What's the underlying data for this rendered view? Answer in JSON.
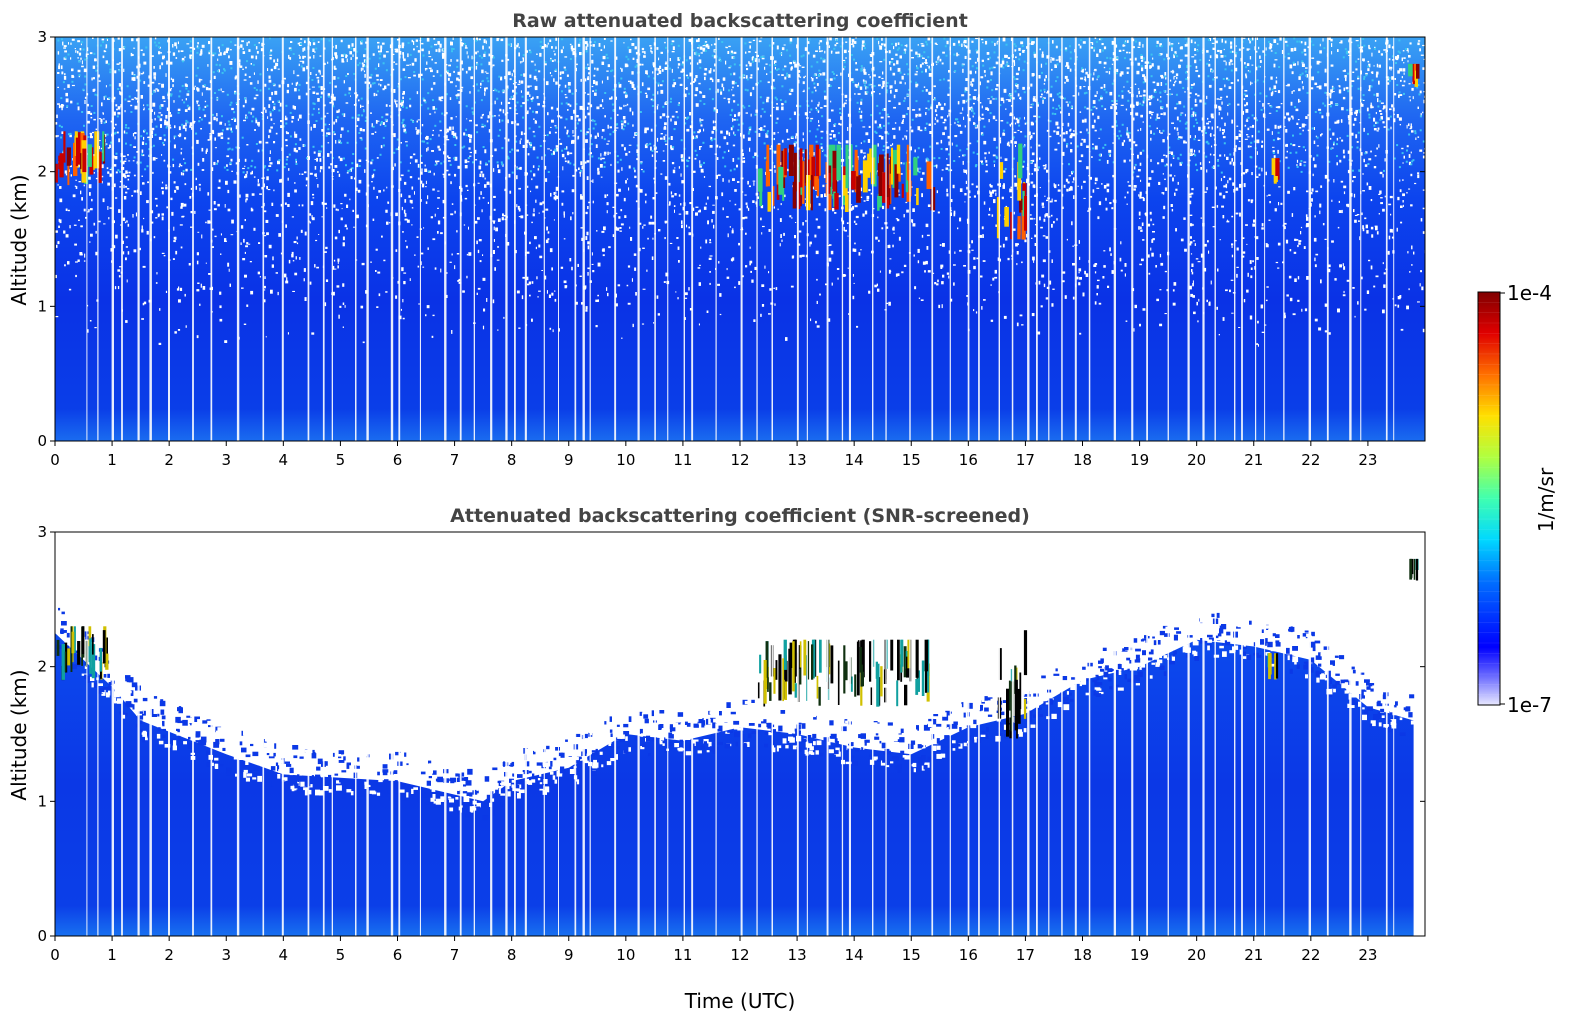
{
  "chart_data": [
    {
      "type": "heatmap",
      "title": "Raw attenuated backscattering coefficient",
      "xlabel": "",
      "ylabel": "Altitude (km)",
      "xlim": [
        0,
        24
      ],
      "ylim": [
        0,
        3
      ],
      "x_ticks": [
        "0",
        "1",
        "2",
        "3",
        "4",
        "5",
        "6",
        "7",
        "8",
        "9",
        "10",
        "11",
        "12",
        "13",
        "14",
        "15",
        "16",
        "17",
        "18",
        "19",
        "20",
        "21",
        "22",
        "23"
      ],
      "y_ticks": [
        "0",
        "1",
        "2",
        "3"
      ],
      "grid": false,
      "features": [
        {
          "kind": "cloud",
          "x_range": [
            0,
            0.9
          ],
          "alt_range": [
            1.9,
            2.3
          ]
        },
        {
          "kind": "cloud",
          "x_range": [
            12.3,
            15.4
          ],
          "alt_range": [
            1.7,
            2.2
          ]
        },
        {
          "kind": "cloud",
          "x_range": [
            16.5,
            17.0
          ],
          "alt_range": [
            1.45,
            2.3
          ]
        },
        {
          "kind": "cloud",
          "x_range": [
            21.2,
            21.4
          ],
          "alt_range": [
            1.9,
            2.1
          ]
        },
        {
          "kind": "cloud",
          "x_range": [
            23.7,
            23.85
          ],
          "alt_range": [
            2.6,
            2.8
          ]
        }
      ]
    },
    {
      "type": "heatmap",
      "title": "Attenuated backscattering coefficient (SNR-screened)",
      "xlabel": "Time (UTC)",
      "ylabel": "Altitude (km)",
      "xlim": [
        0,
        24
      ],
      "ylim": [
        0,
        3
      ],
      "x_ticks": [
        "0",
        "1",
        "2",
        "3",
        "4",
        "5",
        "6",
        "7",
        "8",
        "9",
        "10",
        "11",
        "12",
        "13",
        "14",
        "15",
        "16",
        "17",
        "18",
        "19",
        "20",
        "21",
        "22",
        "23"
      ],
      "y_ticks": [
        "0",
        "1",
        "2",
        "3"
      ],
      "grid": false,
      "signal_top_km": [
        {
          "x": 0,
          "alt": 2.25
        },
        {
          "x": 1,
          "alt": 1.85
        },
        {
          "x": 1.5,
          "alt": 1.6
        },
        {
          "x": 3,
          "alt": 1.35
        },
        {
          "x": 4,
          "alt": 1.2
        },
        {
          "x": 6,
          "alt": 1.15
        },
        {
          "x": 7,
          "alt": 1.05
        },
        {
          "x": 7.5,
          "alt": 1.0
        },
        {
          "x": 8,
          "alt": 1.15
        },
        {
          "x": 9,
          "alt": 1.25
        },
        {
          "x": 10,
          "alt": 1.5
        },
        {
          "x": 11,
          "alt": 1.45
        },
        {
          "x": 12,
          "alt": 1.55
        },
        {
          "x": 13,
          "alt": 1.5
        },
        {
          "x": 14,
          "alt": 1.4
        },
        {
          "x": 15,
          "alt": 1.35
        },
        {
          "x": 16,
          "alt": 1.55
        },
        {
          "x": 17,
          "alt": 1.65
        },
        {
          "x": 18,
          "alt": 1.9
        },
        {
          "x": 19,
          "alt": 2.0
        },
        {
          "x": 20,
          "alt": 2.2
        },
        {
          "x": 21,
          "alt": 2.15
        },
        {
          "x": 22,
          "alt": 2.05
        },
        {
          "x": 23,
          "alt": 1.7
        },
        {
          "x": 23.8,
          "alt": 1.6
        }
      ]
    }
  ],
  "colorbar": {
    "label": "1/m/sr",
    "max_label": "1e-4",
    "min_label": "1e-7",
    "colormap": "jet"
  }
}
